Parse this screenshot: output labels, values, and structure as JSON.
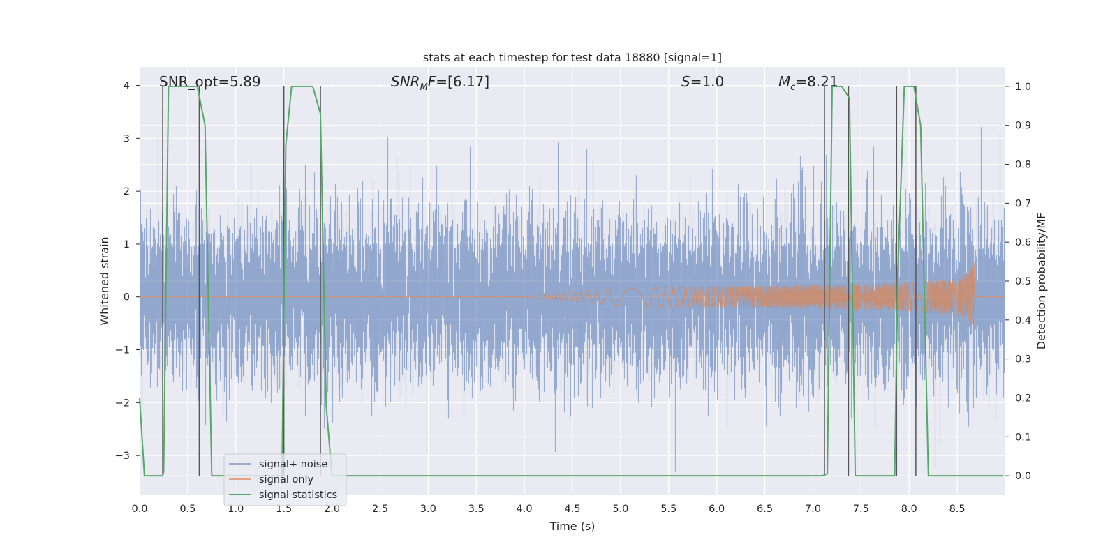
{
  "chart_data": {
    "type": "line",
    "title": "stats at each timestep for test data 18880 [signal=1]",
    "xlabel": "Time (s)",
    "ylabel": "Whitened strain",
    "ylabel_right": "Detection probability/MF",
    "xlim": [
      0,
      9.0
    ],
    "ylim": [
      -3.75,
      4.35
    ],
    "ylim_right": [
      -0.05,
      1.05
    ],
    "xticks": [
      "0.0",
      "0.5",
      "1.0",
      "1.5",
      "2.0",
      "2.5",
      "3.0",
      "3.5",
      "4.0",
      "4.5",
      "5.0",
      "5.5",
      "6.0",
      "6.5",
      "7.0",
      "7.5",
      "8.0",
      "8.5"
    ],
    "yticks": [
      "4",
      "3",
      "2",
      "1",
      "0",
      "−1",
      "−2",
      "−3"
    ],
    "yticks_right": [
      "1.0",
      "0.9",
      "0.8",
      "0.7",
      "0.6",
      "0.5",
      "0.4",
      "0.3",
      "0.2",
      "0.1",
      "0.0"
    ],
    "grid": true,
    "legend_position": "lower-left",
    "annotations": [
      "SNR_opt=5.89",
      "SNR_MF=[6.17]",
      "S=1.0",
      "M_c=8.21"
    ],
    "series": [
      {
        "name": "signal+ noise",
        "color": "#4c72b0",
        "description_values": "noise-dominated whitened strain, approx range [-3.3, 3.5]"
      },
      {
        "name": "signal only",
        "color": "#dd8452",
        "chirp": {
          "start_x": 4.0,
          "merger_x": 8.68,
          "peak_amplitude": 0.68
        }
      },
      {
        "name": "signal statistics",
        "color": "#55a868",
        "axis": "right",
        "x": [
          0.0,
          0.05,
          0.24,
          0.25,
          0.3,
          0.6,
          0.68,
          0.75,
          0.85,
          1.48,
          1.52,
          1.58,
          1.8,
          1.88,
          1.94,
          2.0,
          7.1,
          7.15,
          7.2,
          7.3,
          7.38,
          7.44,
          7.5,
          7.85,
          7.88,
          7.95,
          8.05,
          8.12,
          8.2,
          8.35,
          8.98
        ],
        "y": [
          0.2,
          0.0,
          0.0,
          0.01,
          1.0,
          1.0,
          0.9,
          0.0,
          0.0,
          0.0,
          0.85,
          1.0,
          1.0,
          0.93,
          0.18,
          0.0,
          0.0,
          0.005,
          1.0,
          1.0,
          0.97,
          0.0,
          0.0,
          0.0,
          0.5,
          1.0,
          1.0,
          0.9,
          0.0,
          0.0,
          0.0
        ]
      }
    ],
    "vertical_lines_x": [
      0.24,
      0.62,
      1.5,
      1.88,
      7.12,
      7.37,
      7.87,
      8.07
    ]
  },
  "legend": [
    {
      "label": "signal+ noise",
      "color": "#4c72b0"
    },
    {
      "label": "signal only",
      "color": "#dd8452"
    },
    {
      "label": "signal statistics",
      "color": "#55a868"
    }
  ]
}
